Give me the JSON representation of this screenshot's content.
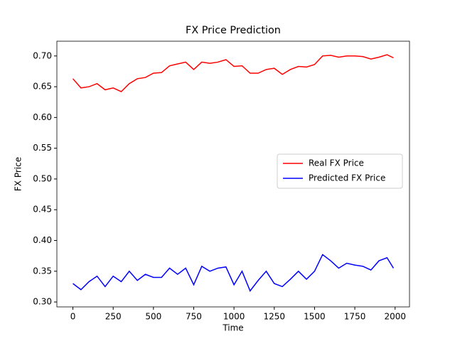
{
  "chart_data": {
    "type": "line",
    "title": "FX Price Prediction",
    "xlabel": "Time",
    "ylabel": "FX Price",
    "x": [
      0,
      50,
      100,
      150,
      200,
      250,
      300,
      350,
      400,
      450,
      500,
      550,
      600,
      650,
      700,
      750,
      800,
      850,
      900,
      950,
      1000,
      1050,
      1100,
      1150,
      1200,
      1250,
      1300,
      1350,
      1400,
      1450,
      1500,
      1550,
      1600,
      1650,
      1700,
      1750,
      1800,
      1850,
      1900,
      1950,
      1990
    ],
    "series": [
      {
        "name": "Real FX Price",
        "color": "#ff0000",
        "values": [
          0.663,
          0.648,
          0.65,
          0.655,
          0.645,
          0.648,
          0.642,
          0.655,
          0.663,
          0.665,
          0.672,
          0.673,
          0.684,
          0.687,
          0.69,
          0.678,
          0.69,
          0.688,
          0.69,
          0.694,
          0.683,
          0.684,
          0.672,
          0.672,
          0.678,
          0.68,
          0.67,
          0.678,
          0.683,
          0.682,
          0.686,
          0.7,
          0.701,
          0.698,
          0.7,
          0.7,
          0.699,
          0.695,
          0.698,
          0.702,
          0.697
        ]
      },
      {
        "name": "Predicted FX Price",
        "color": "#0000ff",
        "values": [
          0.33,
          0.32,
          0.333,
          0.342,
          0.325,
          0.342,
          0.333,
          0.35,
          0.335,
          0.345,
          0.34,
          0.34,
          0.355,
          0.345,
          0.355,
          0.328,
          0.358,
          0.35,
          0.355,
          0.357,
          0.328,
          0.35,
          0.318,
          0.335,
          0.35,
          0.33,
          0.325,
          0.337,
          0.35,
          0.337,
          0.35,
          0.377,
          0.367,
          0.355,
          0.363,
          0.36,
          0.358,
          0.352,
          0.367,
          0.372,
          0.355
        ]
      }
    ],
    "xlim": [
      -99.5,
      2089.5
    ],
    "ylim": [
      0.292,
      0.724
    ],
    "xticks": [
      0,
      250,
      500,
      750,
      1000,
      1250,
      1500,
      1750,
      2000
    ],
    "yticks": [
      {
        "value": 0.3,
        "label": "0.30"
      },
      0.35,
      {
        "value": 0.4,
        "label": "0.40"
      },
      0.45,
      {
        "value": 0.5,
        "label": "0.50"
      },
      0.55,
      {
        "value": 0.6,
        "label": "0.60"
      },
      0.65,
      {
        "value": 0.7,
        "label": "0.70"
      }
    ],
    "legend": "center right"
  }
}
